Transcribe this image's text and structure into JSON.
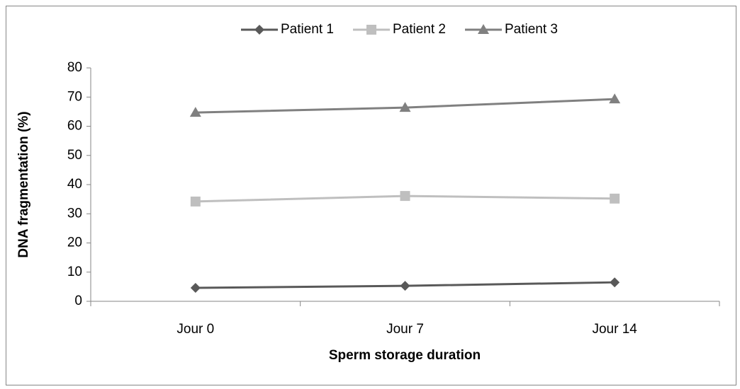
{
  "chart_data": {
    "type": "line",
    "xlabel": "Sperm storage duration",
    "ylabel": "DNA fragmentation (%)",
    "categories": [
      "Jour 0",
      "Jour 7",
      "Jour 14"
    ],
    "series": [
      {
        "name": "Patient 1",
        "color": "#595959",
        "marker": "diamond",
        "values": [
          4.6,
          5.3,
          6.5
        ]
      },
      {
        "name": "Patient 2",
        "color": "#bfbfbf",
        "marker": "square",
        "values": [
          34.2,
          36.1,
          35.2
        ]
      },
      {
        "name": "Patient 3",
        "color": "#808080",
        "marker": "triangle",
        "values": [
          64.7,
          66.4,
          69.3
        ]
      }
    ],
    "ylim": [
      0,
      80
    ],
    "yticks": [
      0,
      10,
      20,
      30,
      40,
      50,
      60,
      70,
      80
    ],
    "grid": false,
    "legend": "top"
  }
}
